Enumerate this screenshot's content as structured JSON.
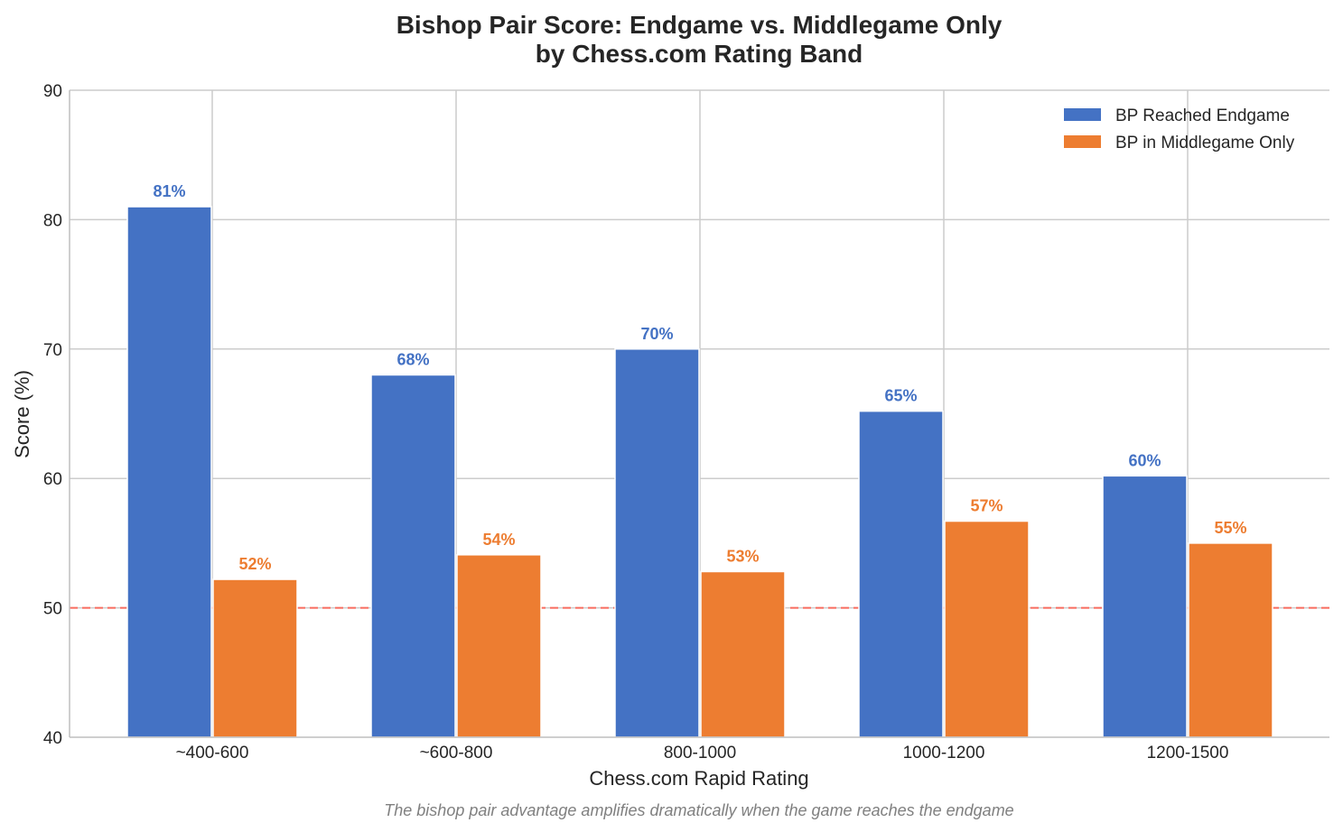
{
  "chart_data": {
    "type": "bar",
    "title_line1": "Bishop Pair Score: Endgame vs. Middlegame Only",
    "title_line2": "by Chess.com Rating Band",
    "xlabel": "Chess.com Rapid Rating",
    "ylabel": "Score (%)",
    "ylim": [
      40,
      90
    ],
    "yticks": [
      "40",
      "50",
      "60",
      "70",
      "80",
      "90"
    ],
    "categories": [
      "~400-600",
      "~600-800",
      "800-1000",
      "1000-1200",
      "1200-1500"
    ],
    "series": [
      {
        "name": "BP Reached Endgame",
        "color": "#4472c4",
        "values": [
          81,
          68,
          70,
          65.2,
          60.2
        ],
        "labels": [
          "81%",
          "68%",
          "70%",
          "65%",
          "60%"
        ]
      },
      {
        "name": "BP in Middlegame Only",
        "color": "#ed7d31",
        "values": [
          52.2,
          54.1,
          52.8,
          56.7,
          55
        ],
        "labels": [
          "52%",
          "54%",
          "53%",
          "57%",
          "55%"
        ]
      }
    ],
    "reference_line": {
      "value": 50,
      "color": "#ff5a4a",
      "style": "dashed"
    },
    "legend_position": "top-right",
    "grid": true,
    "caption": "The bishop pair advantage amplifies dramatically when the game reaches the endgame"
  }
}
